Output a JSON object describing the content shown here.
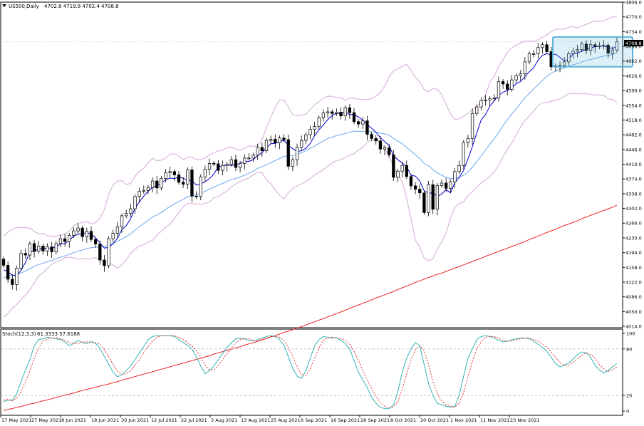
{
  "header": {
    "symbol": "US500,Daily",
    "ohlc": "4702.8 4719.8 4702.4 4708.8"
  },
  "price_label": "4708.8",
  "stoch_header": {
    "name": "Stoch(12,3,3)",
    "values": "61.3333 57.6188"
  },
  "colors": {
    "candle_up": "#000000",
    "candle_down": "#000000",
    "sma_fast": "#0000cc",
    "sma_mid": "#6aa6ee",
    "sma_slow": "#ee2222",
    "bollinger": "#d9b6dc",
    "stoch_main": "#35b4b4",
    "stoch_signal": "#e03030",
    "highlight_box": "#5ab4d8"
  },
  "chart_data": [
    {
      "type": "candlestick",
      "panel": "price",
      "y_ticks": [
        "4806.0",
        "4770.0",
        "4734.0",
        "4698.0",
        "4662.0",
        "4626.0",
        "4590.0",
        "4554.0",
        "4518.0",
        "4482.0",
        "4446.0",
        "4410.0",
        "4374.0",
        "4338.0",
        "4302.0",
        "4266.0",
        "4230.0",
        "4194.0",
        "4158.0",
        "4122.0",
        "4086.0",
        "4050.0",
        "4014.0"
      ],
      "ylim": [
        4014,
        4806
      ],
      "x_ticks": [
        "17 May 2021",
        "27 May 2021",
        "8 Jun 2021",
        "18 Jun 2021",
        "30 Jun 2021",
        "12 Jul 2021",
        "22 Jul 2021",
        "3 Aug 2021",
        "13 Aug 2021",
        "25 Aug 2021",
        "6 Sep 2021",
        "16 Sep 2021",
        "28 Sep 2021",
        "8 Oct 2021",
        "20 Oct 2021",
        "1 Nov 2021",
        "11 Nov 2021",
        "23 Nov 2021"
      ],
      "close": [
        4163,
        4129,
        4116,
        4156,
        4192,
        4188,
        4216,
        4197,
        4210,
        4198,
        4208,
        4196,
        4216,
        4228,
        4221,
        4236,
        4247,
        4254,
        4233,
        4246,
        4226,
        4215,
        4176,
        4162,
        4228,
        4241,
        4257,
        4284,
        4290,
        4301,
        4331,
        4344,
        4346,
        4353,
        4369,
        4352,
        4375,
        4389,
        4392,
        4384,
        4366,
        4361,
        4396,
        4332,
        4331,
        4379,
        4398,
        4412,
        4411,
        4395,
        4407,
        4410,
        4421,
        4402,
        4412,
        4425,
        4425,
        4432,
        4451,
        4443,
        4468,
        4471,
        4462,
        4474,
        4470,
        4405,
        4421,
        4451,
        4468,
        4482,
        4495,
        4502,
        4523,
        4535,
        4538,
        4534,
        4537,
        4528,
        4548,
        4536,
        4514,
        4508,
        4516,
        4483,
        4473,
        4467,
        4447,
        4450,
        4433,
        4378,
        4393,
        4407,
        4380,
        4357,
        4349,
        4340,
        4292,
        4360,
        4300,
        4358,
        4364,
        4351,
        4367,
        4392,
        4407,
        4463,
        4473,
        4534,
        4550,
        4565,
        4567,
        4570,
        4572,
        4612,
        4606,
        4593,
        4616,
        4626,
        4631,
        4660,
        4680,
        4680,
        4695,
        4702,
        4685,
        4648,
        4650,
        4652,
        4660,
        4680,
        4686,
        4690,
        4704,
        4688,
        4702,
        4697,
        4699,
        4701,
        4681,
        4689,
        4709
      ],
      "sma_fast": [
        4152,
        4147,
        4139,
        4137,
        4151,
        4170,
        4196,
        4197,
        4203,
        4204,
        4205,
        4205,
        4208,
        4215,
        4216,
        4224,
        4234,
        4239,
        4240,
        4243,
        4239,
        4230,
        4218,
        4205,
        4207,
        4216,
        4229,
        4250,
        4260,
        4277,
        4302,
        4318,
        4332,
        4344,
        4353,
        4358,
        4363,
        4372,
        4376,
        4375,
        4378,
        4376,
        4370,
        4371,
        4359,
        4362,
        4367,
        4375,
        4386,
        4404,
        4405,
        4409,
        4407,
        4409,
        4412,
        4417,
        4417,
        4421,
        4431,
        4438,
        4450,
        4460,
        4461,
        4465,
        4469,
        4456,
        4448,
        4441,
        4443,
        4449,
        4461,
        4480,
        4494,
        4506,
        4519,
        4529,
        4534,
        4535,
        4537,
        4531,
        4532,
        4525,
        4518,
        4506,
        4498,
        4488,
        4475,
        4465,
        4456,
        4431,
        4421,
        4413,
        4404,
        4383,
        4381,
        4369,
        4345,
        4339,
        4340,
        4331,
        4337,
        4348,
        4340,
        4365,
        4378,
        4395,
        4423,
        4453,
        4486,
        4518,
        4531,
        4552,
        4565,
        4578,
        4586,
        4590,
        4596,
        4607,
        4612,
        4624,
        4636,
        4646,
        4664,
        4676,
        4680,
        4677,
        4679,
        4671,
        4662,
        4667,
        4680,
        4681,
        4687,
        4690,
        4694,
        4697,
        4698,
        4699,
        4695,
        4693,
        4697
      ],
      "sma_mid": [
        4133,
        4136,
        4138,
        4141,
        4144,
        4149,
        4155,
        4160,
        4165,
        4168,
        4172,
        4175,
        4179,
        4183,
        4186,
        4190,
        4194,
        4198,
        4200,
        4204,
        4206,
        4207,
        4208,
        4209,
        4212,
        4217,
        4221,
        4227,
        4233,
        4240,
        4249,
        4257,
        4265,
        4273,
        4281,
        4286,
        4292,
        4300,
        4307,
        4313,
        4319,
        4324,
        4331,
        4332,
        4335,
        4339,
        4344,
        4349,
        4354,
        4359,
        4363,
        4368,
        4373,
        4375,
        4379,
        4383,
        4388,
        4393,
        4400,
        4404,
        4409,
        4414,
        4419,
        4424,
        4429,
        4430,
        4431,
        4434,
        4438,
        4443,
        4449,
        4454,
        4461,
        4467,
        4473,
        4476,
        4480,
        4482,
        4485,
        4488,
        4491,
        4490,
        4490,
        4491,
        4489,
        4488,
        4486,
        4484,
        4481,
        4473,
        4467,
        4460,
        4451,
        4442,
        4433,
        4424,
        4412,
        4406,
        4397,
        4389,
        4383,
        4378,
        4375,
        4376,
        4378,
        4383,
        4391,
        4403,
        4416,
        4430,
        4444,
        4459,
        4472,
        4488,
        4504,
        4519,
        4533,
        4546,
        4559,
        4572,
        4583,
        4594,
        4604,
        4615,
        4625,
        4632,
        4638,
        4642,
        4645,
        4649,
        4653,
        4656,
        4660,
        4663,
        4666,
        4668,
        4672,
        4674,
        4676,
        4678,
        4682
      ],
      "sma_slow": [
        3808,
        3811,
        3813,
        3816,
        3818,
        3821,
        3824,
        3826,
        3829,
        3832,
        3834,
        3837,
        3840,
        3843,
        3846,
        3848,
        3851,
        3854,
        3857,
        3860,
        3862,
        3865,
        3868,
        3870,
        3873,
        3876,
        3879,
        3882,
        3885,
        3888,
        3891,
        3894,
        3897,
        3900,
        3903,
        3906,
        3909,
        3912,
        3915,
        3918,
        3921,
        3924,
        3927,
        3930,
        3933,
        3936,
        3939,
        3942,
        3946,
        3949,
        3952,
        3955,
        3958,
        3961,
        3964,
        3968,
        3971,
        3974,
        3977,
        3981,
        3984,
        3988,
        3991,
        3995,
        3999,
        4002,
        4006,
        4010,
        4013,
        4017,
        4021,
        4025,
        4029,
        4033,
        4037,
        4041,
        4045,
        4049,
        4053,
        4058,
        4062,
        4066,
        4070,
        4074,
        4079,
        4083,
        4087,
        4091,
        4095,
        4099,
        4104,
        4108,
        4112,
        4117,
        4121,
        4125,
        4129,
        4133,
        4137,
        4141,
        4144,
        4148,
        4152,
        4156,
        4160,
        4164,
        4168,
        4172,
        4176,
        4180,
        4185,
        4189,
        4193,
        4197,
        4201,
        4205,
        4209,
        4213,
        4217,
        4221,
        4226,
        4230,
        4234,
        4239,
        4243,
        4247,
        4251,
        4256,
        4260,
        4264,
        4268,
        4272,
        4277,
        4281,
        4285,
        4289,
        4293,
        4297,
        4301,
        4305,
        4310
      ],
      "bb_upper": [
        4234,
        4244,
        4251,
        4256,
        4255,
        4255,
        4254,
        4246,
        4240,
        4241,
        4235,
        4234,
        4234,
        4237,
        4238,
        4247,
        4259,
        4266,
        4267,
        4271,
        4264,
        4267,
        4278,
        4299,
        4337,
        4359,
        4369,
        4370,
        4360,
        4363,
        4381,
        4393,
        4400,
        4413,
        4425,
        4418,
        4420,
        4425,
        4435,
        4435,
        4430,
        4421,
        4427,
        4427,
        4421,
        4421,
        4425,
        4433,
        4438,
        4442,
        4445,
        4450,
        4452,
        4447,
        4445,
        4449,
        4455,
        4453,
        4456,
        4470,
        4500,
        4525,
        4549,
        4567,
        4566,
        4550,
        4531,
        4529,
        4530,
        4532,
        4544,
        4555,
        4563,
        4571,
        4576,
        4576,
        4573,
        4573,
        4566,
        4572,
        4571,
        4569,
        4568,
        4568,
        4570,
        4577,
        4585,
        4601,
        4624,
        4638,
        4644,
        4649,
        4654,
        4640,
        4622,
        4611,
        4592,
        4587,
        4595,
        4593,
        4580,
        4556,
        4533,
        4519,
        4521,
        4527,
        4535,
        4543,
        4552,
        4561,
        4579,
        4610,
        4625,
        4649,
        4665,
        4684,
        4694,
        4701,
        4706,
        4711,
        4711,
        4710,
        4714,
        4720,
        4726,
        4734,
        4740,
        4740,
        4740,
        4745,
        4746,
        4743,
        4748,
        4752,
        4756,
        4760,
        4758,
        4761,
        4765,
        4770,
        4770
      ],
      "bb_lower": [
        4036,
        4046,
        4058,
        4067,
        4080,
        4090,
        4103,
        4120,
        4137,
        4145,
        4156,
        4165,
        4172,
        4175,
        4182,
        4183,
        4181,
        4178,
        4179,
        4180,
        4179,
        4182,
        4174,
        4171,
        4171,
        4163,
        4156,
        4164,
        4177,
        4192,
        4202,
        4211,
        4213,
        4220,
        4224,
        4237,
        4246,
        4256,
        4263,
        4277,
        4292,
        4306,
        4314,
        4314,
        4313,
        4312,
        4314,
        4318,
        4328,
        4331,
        4338,
        4345,
        4355,
        4362,
        4368,
        4373,
        4376,
        4384,
        4391,
        4389,
        4372,
        4362,
        4347,
        4334,
        4325,
        4340,
        4351,
        4357,
        4362,
        4368,
        4375,
        4384,
        4390,
        4397,
        4405,
        4413,
        4419,
        4421,
        4426,
        4432,
        4436,
        4445,
        4451,
        4464,
        4468,
        4471,
        4462,
        4448,
        4428,
        4404,
        4387,
        4367,
        4327,
        4276,
        4225,
        4207,
        4180,
        4174,
        4179,
        4203,
        4220,
        4242,
        4277,
        4305,
        4314,
        4318,
        4333,
        4343,
        4353,
        4364,
        4372,
        4380,
        4392,
        4407,
        4428,
        4446,
        4462,
        4482,
        4501,
        4517,
        4528,
        4540,
        4553,
        4560,
        4560,
        4564,
        4566,
        4570,
        4576,
        4582,
        4583,
        4582,
        4582,
        4582,
        4581,
        4579,
        4579,
        4578,
        4570,
        4568,
        4561
      ]
    },
    {
      "type": "line",
      "panel": "oscillator",
      "y_ticks": [
        "100",
        "80",
        "20",
        "0"
      ],
      "ylim": [
        0,
        100
      ],
      "levels": [
        80,
        20
      ],
      "series": [
        {
          "name": "Stoch(12,3,3) main",
          "values": [
            12,
            14,
            14,
            22,
            38,
            53,
            66,
            84,
            92,
            93,
            95,
            94,
            93,
            92,
            89,
            84,
            87,
            91,
            88,
            87,
            90,
            87,
            81,
            70,
            60,
            50,
            44,
            47,
            52,
            58,
            66,
            75,
            83,
            92,
            96,
            97,
            97,
            97,
            97,
            96,
            92,
            88,
            85,
            80,
            70,
            58,
            48,
            52,
            58,
            66,
            74,
            82,
            88,
            93,
            94,
            93,
            91,
            90,
            92,
            94,
            96,
            97,
            96,
            92,
            85,
            70,
            55,
            45,
            42,
            52,
            68,
            84,
            92,
            96,
            95,
            94,
            94,
            91,
            87,
            80,
            65,
            50,
            40,
            30,
            18,
            10,
            5,
            3,
            3,
            8,
            25,
            50,
            68,
            80,
            88,
            84,
            60,
            35,
            20,
            10,
            8,
            6,
            5,
            6,
            20,
            45,
            68,
            80,
            92,
            96,
            97,
            96,
            94,
            91,
            89,
            90,
            92,
            93,
            94,
            94,
            93,
            90,
            86,
            82,
            77,
            69,
            61,
            57,
            59,
            62,
            67,
            73,
            76,
            75,
            69,
            59,
            53,
            49,
            52,
            57,
            61
          ]
        },
        {
          "name": "Stoch(12,3,3) signal",
          "values": [
            14,
            15,
            13,
            17,
            25,
            38,
            52,
            68,
            81,
            90,
            93,
            94,
            94,
            93,
            91,
            88,
            87,
            87,
            89,
            89,
            88,
            88,
            86,
            79,
            70,
            60,
            51,
            47,
            48,
            52,
            59,
            66,
            75,
            83,
            90,
            95,
            97,
            97,
            97,
            97,
            95,
            92,
            88,
            84,
            78,
            69,
            59,
            53,
            53,
            59,
            66,
            74,
            81,
            88,
            92,
            93,
            93,
            91,
            91,
            92,
            94,
            96,
            96,
            95,
            91,
            82,
            70,
            57,
            47,
            46,
            54,
            68,
            81,
            91,
            94,
            95,
            94,
            93,
            91,
            86,
            77,
            65,
            52,
            40,
            29,
            19,
            11,
            6,
            4,
            5,
            12,
            28,
            48,
            66,
            79,
            84,
            77,
            60,
            38,
            22,
            13,
            8,
            6,
            5,
            10,
            24,
            44,
            64,
            80,
            89,
            95,
            96,
            96,
            94,
            91,
            90,
            90,
            92,
            93,
            94,
            94,
            92,
            90,
            86,
            82,
            76,
            69,
            62,
            59,
            59,
            63,
            67,
            72,
            75,
            73,
            68,
            60,
            54,
            51,
            53,
            57
          ]
        }
      ]
    }
  ]
}
